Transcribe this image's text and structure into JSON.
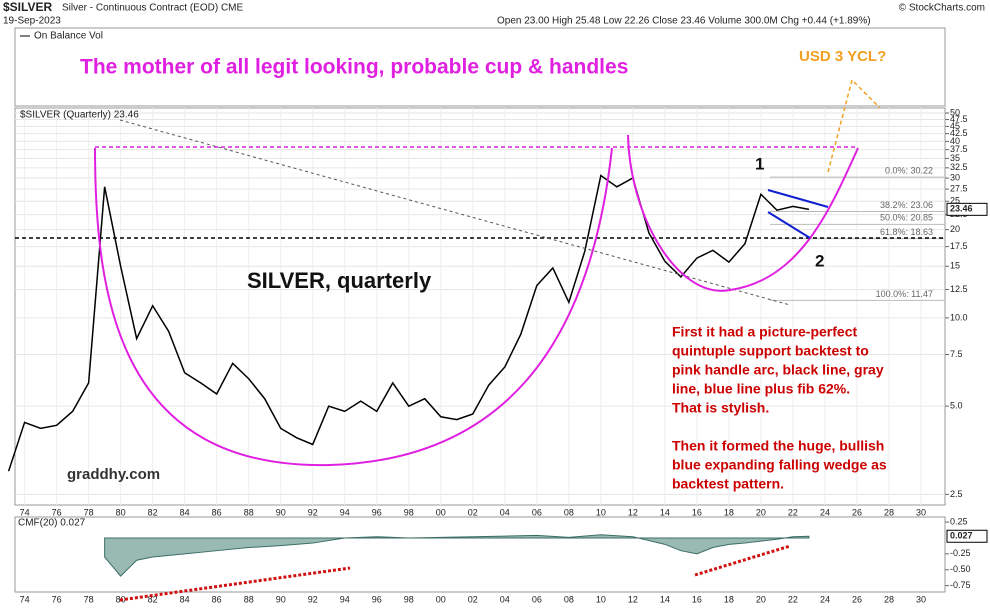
{
  "header": {
    "symbol": "$SILVER",
    "name": "Silver - Continuous Contract (EOD) CME",
    "date": "19-Sep-2023",
    "quote": "Open 23.00  High 25.48  Low 22.26  Close 23.46  Volume 300.0M  Chg +0.44 (+1.89%)",
    "copyright": "© StockCharts.com",
    "upper_indicator": "On Balance Vol"
  },
  "chart_data": [
    {
      "type": "line",
      "title": "The mother of all legit looking, probable cup & handles",
      "legend_label": "$SILVER (Quarterly) 23.46",
      "last_value": 23.46,
      "color": "#000000",
      "log_scale": true,
      "grid": true,
      "x": [
        1973,
        1974,
        1975,
        1976,
        1977,
        1978,
        1979,
        1980,
        1981,
        1982,
        1983,
        1984,
        1985,
        1986,
        1987,
        1988,
        1989,
        1990,
        1991,
        1992,
        1993,
        1994,
        1995,
        1996,
        1997,
        1998,
        1999,
        2000,
        2001,
        2002,
        2003,
        2004,
        2005,
        2006,
        2007,
        2008,
        2009,
        2010,
        2011,
        2012,
        2013,
        2014,
        2015,
        2016,
        2017,
        2018,
        2019,
        2020,
        2021,
        2022,
        2023
      ],
      "values": [
        3,
        4.4,
        4.2,
        4.3,
        4.8,
        6,
        28,
        15,
        8.5,
        11,
        9,
        6.5,
        6,
        5.5,
        7,
        6.2,
        5.3,
        4.2,
        3.9,
        3.7,
        5,
        4.8,
        5.2,
        4.8,
        6,
        5,
        5.3,
        4.6,
        4.5,
        4.7,
        5.9,
        6.8,
        8.8,
        12.9,
        14.8,
        11.3,
        16.9,
        30.6,
        28,
        30,
        19.5,
        15.6,
        13.8,
        16,
        17,
        15.5,
        17.9,
        26.4,
        23.3,
        24,
        23.46
      ],
      "xlim": [
        1973.4,
        2031.5
      ],
      "xticks": [
        {
          "value": 1974,
          "label": "74"
        },
        {
          "value": 1976,
          "label": "76"
        },
        {
          "value": 1978,
          "label": "78"
        },
        {
          "value": 1980,
          "label": "80"
        },
        {
          "value": 1982,
          "label": "82"
        },
        {
          "value": 1984,
          "label": "84"
        },
        {
          "value": 1986,
          "label": "86"
        },
        {
          "value": 1988,
          "label": "88"
        },
        {
          "value": 1990,
          "label": "90"
        },
        {
          "value": 1992,
          "label": "92"
        },
        {
          "value": 1994,
          "label": "94"
        },
        {
          "value": 1996,
          "label": "96"
        },
        {
          "value": 1998,
          "label": "98"
        },
        {
          "value": 2000,
          "label": "00"
        },
        {
          "value": 2002,
          "label": "02"
        },
        {
          "value": 2004,
          "label": "04"
        },
        {
          "value": 2006,
          "label": "06"
        },
        {
          "value": 2008,
          "label": "08"
        },
        {
          "value": 2010,
          "label": "10"
        },
        {
          "value": 2012,
          "label": "12"
        },
        {
          "value": 2014,
          "label": "14"
        },
        {
          "value": 2016,
          "label": "16"
        },
        {
          "value": 2018,
          "label": "18"
        },
        {
          "value": 2020,
          "label": "20"
        },
        {
          "value": 2022,
          "label": "22"
        },
        {
          "value": 2024,
          "label": "24"
        },
        {
          "value": 2026,
          "label": "26"
        },
        {
          "value": 2028,
          "label": "28"
        },
        {
          "value": 2030,
          "label": "30"
        }
      ],
      "ylim": [
        2.3,
        52
      ],
      "yticks": [
        2.5,
        {
          "value": 5,
          "label": "5.0"
        },
        7.5,
        {
          "value": 10,
          "label": "10.0"
        },
        12.5,
        15,
        17.5,
        20,
        22.5,
        25,
        27.5,
        30,
        32.5,
        35,
        37.5,
        40,
        42.5,
        45,
        47.5,
        50
      ],
      "fib_levels": [
        {
          "label": "0.0%: 30.22",
          "value": 30.22
        },
        {
          "label": "38.2%: 23.06",
          "value": 23.06
        },
        {
          "label": "50.0%: 20.85",
          "value": 20.85
        },
        {
          "label": "61.8%: 18.63",
          "value": 18.63
        },
        {
          "label": "100.0%: 11.47",
          "value": 11.47
        }
      ],
      "annotations": {
        "target": "USD 3 YCL?",
        "name": "SILVER, quarterly",
        "site": "graddhy.com",
        "point1": "1",
        "point2": "2",
        "note1": [
          "First it had a picture-perfect",
          "quintuple support backtest to",
          "pink handle arc, black line, gray",
          "line, blue line plus fib 62%.",
          "That is stylish."
        ],
        "note2": [
          "Then it formed the huge, bullish",
          "blue expanding falling wedge as",
          "backtest pattern."
        ]
      }
    },
    {
      "type": "area",
      "legend_label": "CMF(20) 0.027",
      "last_value": 0.027,
      "color": "#7fa7a0",
      "x": [
        1979,
        1980,
        1981,
        1982,
        1984,
        1986,
        1988,
        1990,
        1992,
        1994,
        1996,
        1998,
        2000,
        2002,
        2004,
        2006,
        2008,
        2010,
        2012,
        2014,
        2015,
        2016,
        2017,
        2018,
        2019,
        2020,
        2021,
        2022,
        2023
      ],
      "values": [
        -0.3,
        -0.6,
        -0.35,
        -0.3,
        -0.25,
        -0.2,
        -0.15,
        -0.12,
        -0.08,
        0,
        0.02,
        0,
        0.01,
        0.02,
        0.03,
        0.04,
        0.01,
        0.05,
        0.02,
        -0.1,
        -0.2,
        -0.25,
        -0.15,
        -0.1,
        -0.08,
        -0.05,
        -0.02,
        0.02,
        0.027
      ],
      "ylim": [
        -0.85,
        0.33
      ],
      "yticks": [
        0.25,
        -0.25,
        {
          "value": -0.5,
          "label": "-0.50"
        },
        -0.75
      ]
    }
  ]
}
